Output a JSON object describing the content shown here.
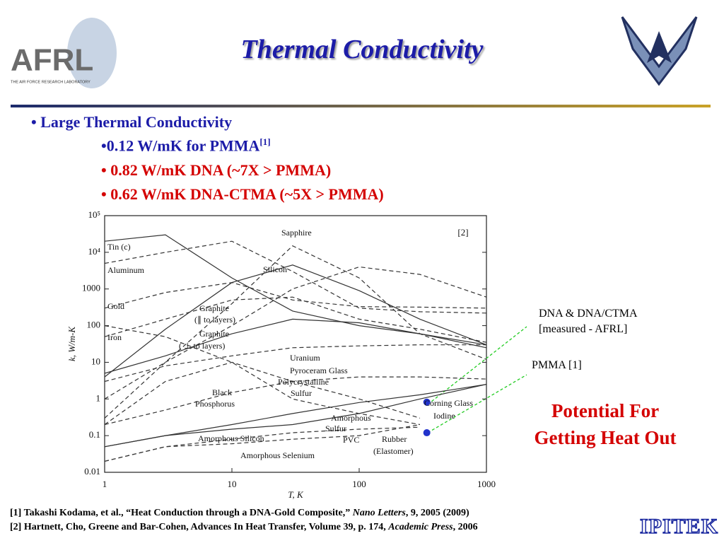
{
  "header": {
    "title": "Thermal Conductivity",
    "logo_text": "AFRL",
    "logo_subtext": "THE AIR FORCE RESEARCH LABORATORY"
  },
  "bullets": [
    {
      "text": "• Large Thermal Conductivity"
    },
    {
      "text": "•0.12 W/mK for PMMA",
      "sup": "[1]"
    },
    {
      "text": "• 0.82 W/mK DNA (~7X > PMMA)"
    },
    {
      "text": "• 0.62 W/mK DNA-CTMA (~5X > PMMA)"
    }
  ],
  "chart_data": {
    "type": "line",
    "xlabel": "T, K",
    "ylabel": "k, W/m-K",
    "source_label": "[2]",
    "log_x": true,
    "log_y": true,
    "xlim": [
      1,
      1000
    ],
    "ylim": [
      0.01,
      100000
    ],
    "xticks": [
      1,
      10,
      100,
      1000
    ],
    "yticks": [
      0.01,
      0.1,
      1,
      10,
      100,
      1000,
      {
        "value": 10000,
        "label": "10⁴"
      },
      {
        "value": 100000,
        "label": "10⁵"
      }
    ],
    "x": [
      1,
      3,
      10,
      30,
      100,
      300,
      1000
    ],
    "series": [
      {
        "name": "Tin (c)",
        "style": "solid",
        "color": "#333333",
        "values": [
          20000,
          30000,
          2000,
          250,
          100,
          60,
          30
        ]
      },
      {
        "name": "Sapphire",
        "style": "dashed",
        "color": "#333333",
        "values": [
          0.3,
          10,
          400,
          15000,
          2000,
          60,
          12
        ]
      },
      {
        "name": "Silicon",
        "style": "solid",
        "color": "#333333",
        "values": [
          4,
          80,
          1500,
          4500,
          900,
          150,
          30
        ]
      },
      {
        "name": "Aluminum",
        "style": "dashed",
        "color": "#333333",
        "values": [
          5000,
          10000,
          20000,
          3000,
          300,
          240,
          220
        ]
      },
      {
        "name": "Gold",
        "style": "dashed",
        "color": "#333333",
        "values": [
          300,
          800,
          1500,
          500,
          330,
          320,
          300
        ]
      },
      {
        "name": "Iron",
        "style": "dashed",
        "color": "#333333",
        "values": [
          50,
          150,
          500,
          600,
          150,
          80,
          35
        ]
      },
      {
        "name": "Graphite (∥ to layers)",
        "style": "dashed",
        "color": "#333333",
        "values": [
          1,
          10,
          100,
          1000,
          4000,
          2500,
          600
        ]
      },
      {
        "name": "Graphite (⊥ to layers)",
        "style": "solid",
        "color": "#333333",
        "values": [
          5,
          15,
          60,
          150,
          120,
          60,
          25
        ]
      },
      {
        "name": "Uranium",
        "style": "dashed",
        "color": "#333333",
        "values": [
          3,
          8,
          15,
          25,
          28,
          30,
          30
        ]
      },
      {
        "name": "Pyroceram Glass",
        "style": "dashed",
        "color": "#333333",
        "values": [
          0.2,
          0.5,
          1.5,
          3,
          4,
          4,
          3.5
        ]
      },
      {
        "name": "Polycrystalline Sulfur",
        "style": "dashed",
        "color": "#333333",
        "values": [
          0.2,
          3,
          10,
          3,
          1,
          0.3,
          null
        ]
      },
      {
        "name": "Black Phosphorus",
        "style": "dashed",
        "color": "#333333",
        "values": [
          100,
          50,
          10,
          1,
          0.4,
          0.2,
          null
        ]
      },
      {
        "name": "Corning Glass",
        "style": "solid",
        "color": "#333333",
        "values": [
          0.05,
          0.1,
          0.2,
          0.4,
          0.8,
          1.3,
          2.5
        ]
      },
      {
        "name": "Amorphous Silicon",
        "style": "solid",
        "color": "#333333",
        "values": [
          0.05,
          0.1,
          0.15,
          0.2,
          0.4,
          1,
          2.5
        ]
      },
      {
        "name": "Amorphous Selenium",
        "style": "dashed",
        "color": "#333333",
        "values": [
          0.02,
          0.05,
          0.06,
          0.08,
          0.1,
          0.2,
          null
        ]
      },
      {
        "name": "PVC",
        "style": "dashed",
        "color": "#333333",
        "values": [
          0.02,
          0.05,
          0.08,
          0.12,
          0.15,
          0.17,
          null
        ]
      }
    ],
    "markers": {
      "color": "#2233cc",
      "x": [
        340,
        340
      ],
      "values": [
        0.82,
        0.12
      ]
    },
    "annotations": [
      "Sapphire",
      "Tin (c)",
      "Aluminum",
      "Silicon",
      "Gold",
      "Graphite",
      "(∥ to layers)",
      "Iron",
      "Graphite",
      "( ⊥ to layers)",
      "Uranium",
      "Pyroceram Glass",
      "Polycrystalline",
      "Sulfur",
      "Black",
      "Phosphorus",
      "Corning Glass",
      "Iodine",
      "Amorphous",
      "Sulfur",
      "PVC",
      "Rubber",
      "(Elastomer)",
      "Amorphous Silicon",
      "Amorphous Selenium"
    ]
  },
  "notes": [
    "DNA & DNA/CTMA",
    "[measured - AFRL]",
    "PMMA [1]"
  ],
  "callout": [
    "Potential For",
    "Getting Heat Out"
  ],
  "references": [
    {
      "a": "[1] Takashi Kodama, et al., “Heat Conduction through a DNA-Gold Composite,” ",
      "b": "Nano Letters",
      "c": ", 9, 2005 (2009)"
    },
    {
      "a": "[2] Hartnett, Cho, Greene and Bar-Cohen, Advances In Heat Transfer, Volume 39, p. 174, ",
      "b": "Academic Press",
      "c": ", 2006"
    }
  ],
  "footer": {
    "logo": "IPITEK"
  }
}
